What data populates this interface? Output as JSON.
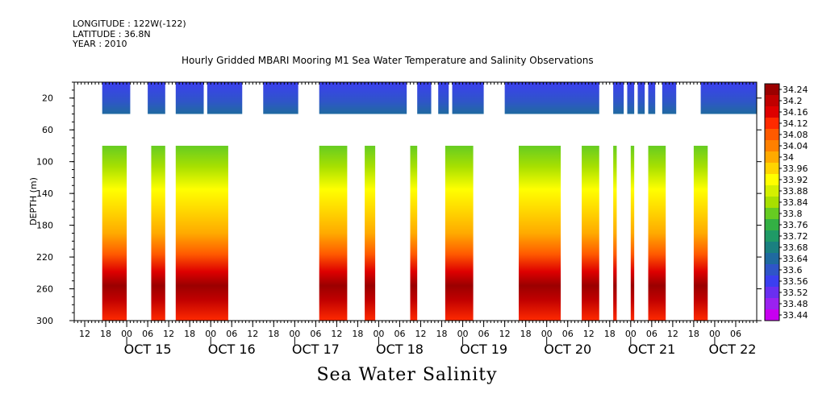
{
  "header": {
    "longitude": "LONGITUDE : 122W(-122)",
    "latitude": "LATITUDE : 36.8N",
    "year": "YEAR : 2010",
    "title": "Hourly Gridded MBARI Mooring M1 Sea Water Temperature and Salinity Observations"
  },
  "footer": {
    "label": "Sea Water Salinity"
  },
  "chart_data": {
    "type": "heatmap",
    "title": "Hourly Gridded MBARI Mooring M1 Sea Water Temperature and Salinity Observations",
    "ylabel": "DEPTH (m)",
    "xlabel": "",
    "colorbar_label": "Sea Water Salinity",
    "ylim": [
      300,
      0
    ],
    "xlim_hours": [
      0,
      195
    ],
    "y_ticks": [
      20,
      60,
      100,
      140,
      180,
      220,
      260,
      300
    ],
    "x_tick_labels": [
      "12",
      "18",
      "00",
      "06",
      "12",
      "18",
      "00",
      "06",
      "12",
      "18",
      "00",
      "06",
      "12",
      "18",
      "00",
      "06",
      "12",
      "18",
      "00",
      "06",
      "12",
      "18",
      "00",
      "06",
      "12",
      "18",
      "00",
      "06",
      "12",
      "18",
      "00",
      "06"
    ],
    "x_date_labels": [
      "OCT 15",
      "OCT 16",
      "OCT 17",
      "OCT 18",
      "OCT 19",
      "OCT 20",
      "OCT 21",
      "OCT 22"
    ],
    "colorbar": {
      "levels": [
        "34.24",
        "34.2",
        "34.16",
        "34.12",
        "34.08",
        "34.04",
        "34",
        "33.96",
        "33.92",
        "33.88",
        "33.84",
        "33.8",
        "33.76",
        "33.72",
        "33.68",
        "33.64",
        "33.6",
        "33.56",
        "33.52",
        "33.48",
        "33.44"
      ],
      "colors": [
        "#9b0000",
        "#c00000",
        "#de0000",
        "#ff2a00",
        "#ff5a00",
        "#ff8000",
        "#ffaa00",
        "#ffd400",
        "#ffff00",
        "#d4f000",
        "#a8e000",
        "#66cc22",
        "#33b044",
        "#1f9a66",
        "#1a8080",
        "#1f6aa0",
        "#2f55c8",
        "#3b3ff0",
        "#6a2ff0",
        "#9a22f0",
        "#c800f0"
      ]
    },
    "surface_band": {
      "depth_range": [
        0,
        40
      ],
      "value_range": [
        33.52,
        33.64
      ],
      "coverage_hours": [
        [
          8,
          16
        ],
        [
          21,
          26
        ],
        [
          29,
          37
        ],
        [
          38,
          48
        ],
        [
          54,
          64
        ],
        [
          70,
          95
        ],
        [
          98,
          102
        ],
        [
          104,
          107
        ],
        [
          108,
          117
        ],
        [
          123,
          150
        ],
        [
          154,
          157
        ],
        [
          158,
          160
        ],
        [
          161,
          163
        ],
        [
          164,
          166
        ],
        [
          168,
          172
        ],
        [
          179,
          195
        ]
      ]
    },
    "deep_profiles": {
      "depth_range": [
        80,
        300
      ],
      "value_range": [
        33.8,
        34.22
      ],
      "profiles_hours": [
        [
          8,
          15
        ],
        [
          22,
          26
        ],
        [
          29,
          44
        ],
        [
          70,
          78
        ],
        [
          83,
          86
        ],
        [
          96,
          98
        ],
        [
          106,
          114
        ],
        [
          127,
          139
        ],
        [
          145,
          150
        ],
        [
          154,
          155
        ],
        [
          159,
          160
        ],
        [
          164,
          169
        ],
        [
          177,
          181
        ]
      ]
    }
  }
}
